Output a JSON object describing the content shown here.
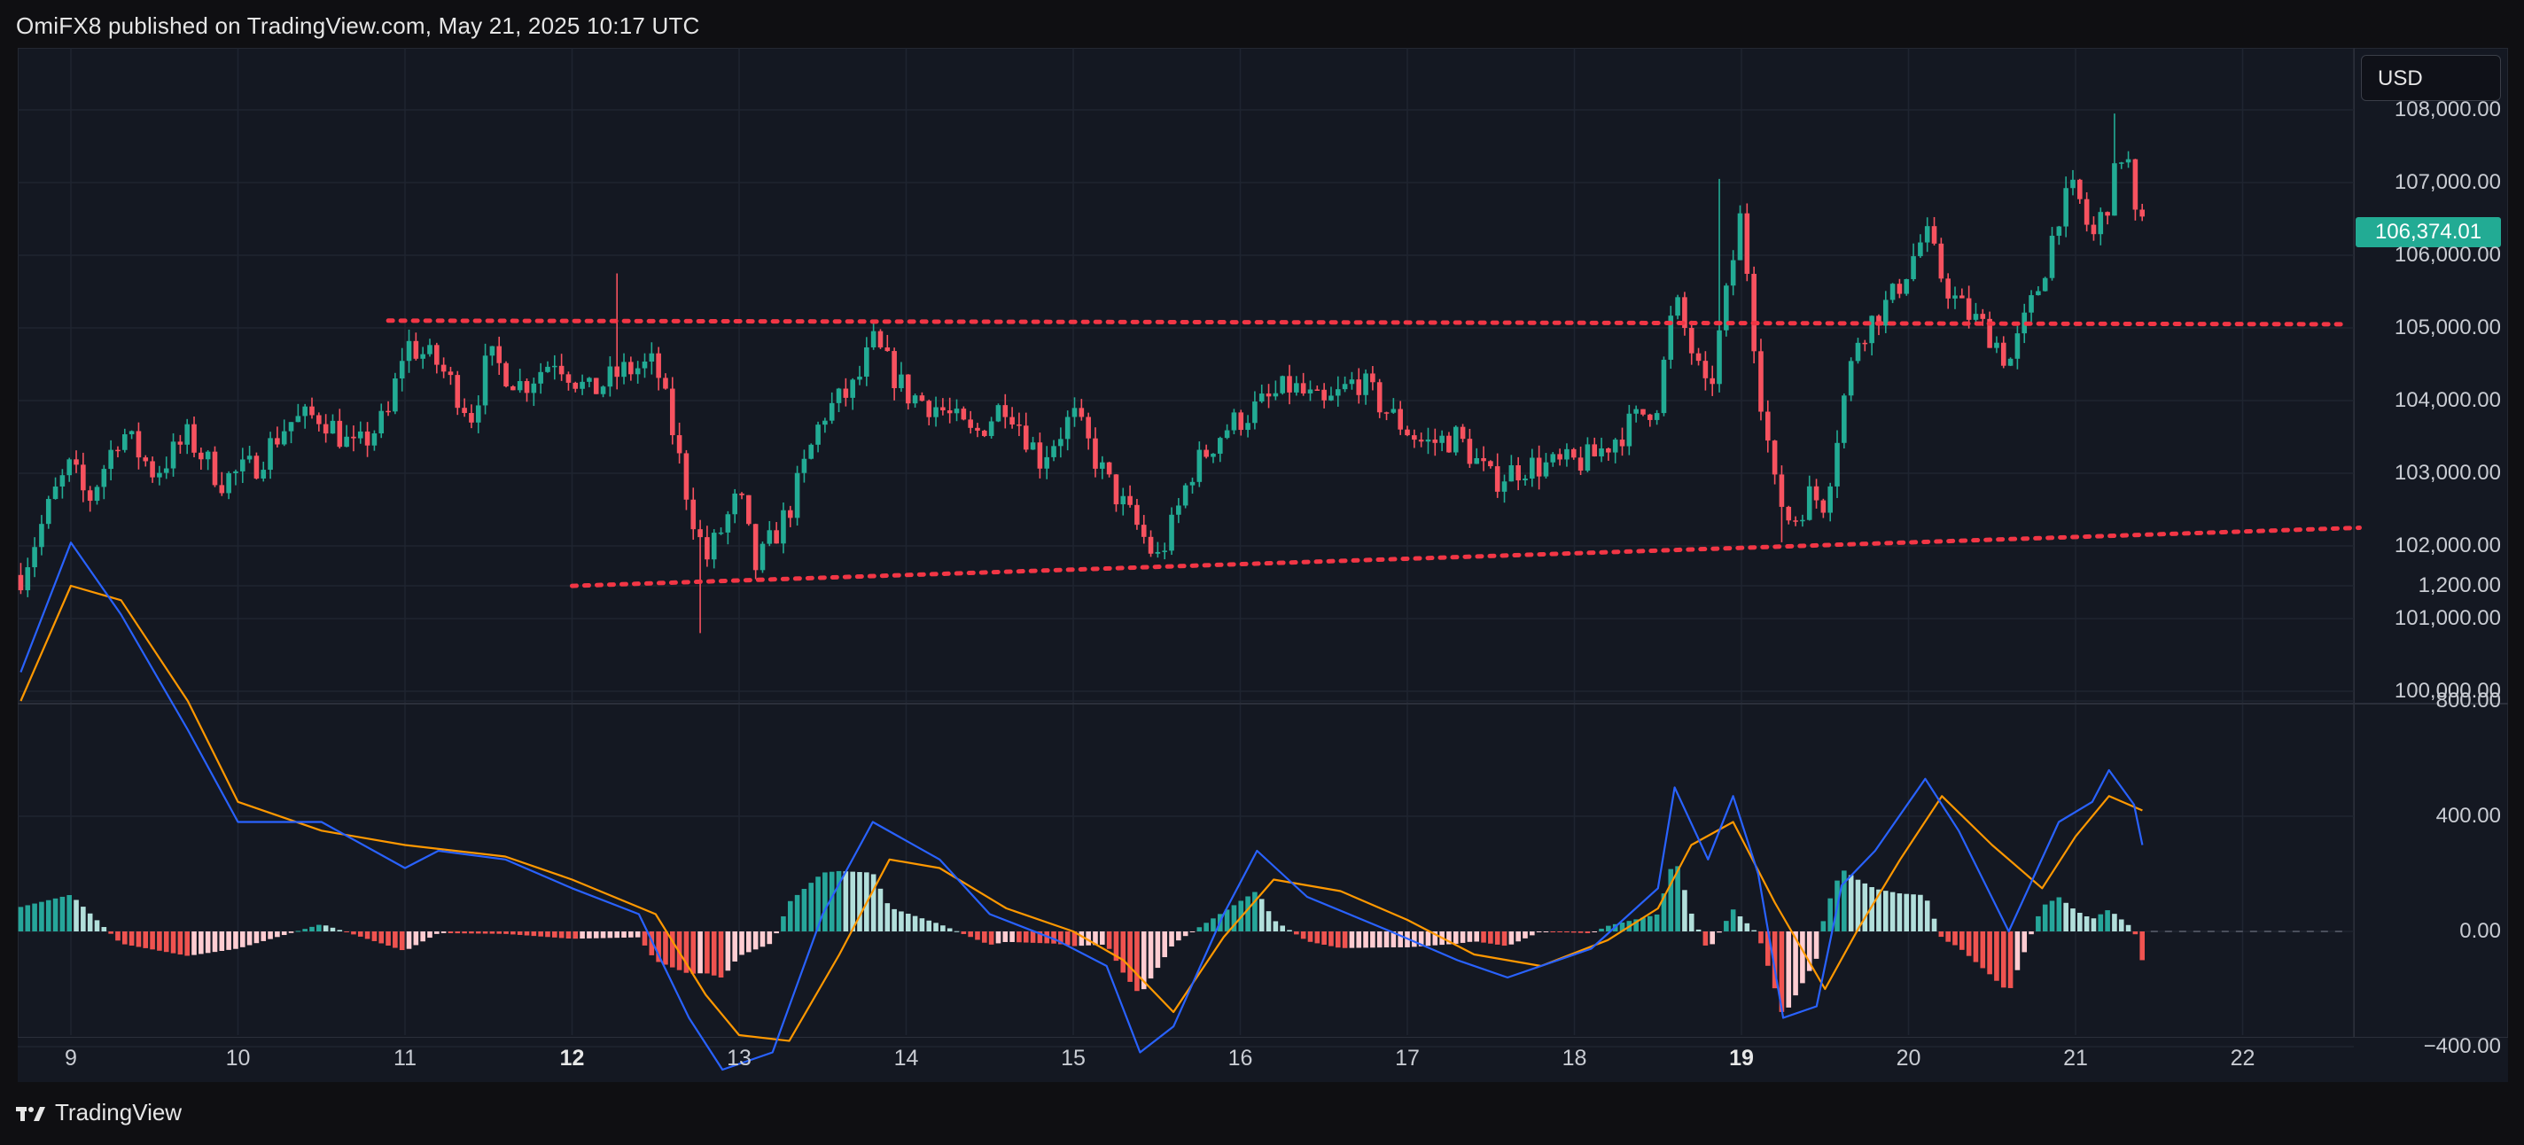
{
  "header": {
    "text": "OmiFX8 published on TradingView.com, May 21, 2025 10:17 UTC"
  },
  "currency_button": {
    "label": "USD"
  },
  "last_price": {
    "label": "106,374.01",
    "value": 106374.01
  },
  "brand": {
    "name": "TradingView"
  },
  "colors": {
    "up": "#22ab94",
    "down": "#f7525f",
    "macd": "#2962ff",
    "signal": "#ff9800",
    "level": "#f23645",
    "hist_up_strong": "#26a69a",
    "hist_up_weak": "#b2dfdb",
    "hist_down_strong": "#ef5350",
    "hist_down_weak": "#ffcdd2"
  },
  "price_axis": {
    "ticks": [
      "108,000.00",
      "107,000.00",
      "106,000.00",
      "105,000.00",
      "104,000.00",
      "103,000.00",
      "102,000.00",
      "101,000.00",
      "100,000.00"
    ],
    "values": [
      108000,
      107000,
      106000,
      105000,
      104000,
      103000,
      102000,
      101000,
      100000
    ]
  },
  "macd_axis": {
    "ticks": [
      "1,200.00",
      "800.00",
      "400.00",
      "0.00",
      "−400.00"
    ],
    "values": [
      1200,
      800,
      400,
      0,
      -400
    ]
  },
  "x_axis": {
    "ticks": [
      {
        "label": "9",
        "bold": false
      },
      {
        "label": "10",
        "bold": false
      },
      {
        "label": "11",
        "bold": false
      },
      {
        "label": "12",
        "bold": true
      },
      {
        "label": "13",
        "bold": false
      },
      {
        "label": "14",
        "bold": false
      },
      {
        "label": "15",
        "bold": false
      },
      {
        "label": "16",
        "bold": false
      },
      {
        "label": "17",
        "bold": false
      },
      {
        "label": "18",
        "bold": false
      },
      {
        "label": "19",
        "bold": true
      },
      {
        "label": "20",
        "bold": false
      },
      {
        "label": "21",
        "bold": false
      },
      {
        "label": "22",
        "bold": false
      }
    ]
  },
  "chart_data": {
    "type": "candlestick",
    "symbol_currency": "USD",
    "x_unit": "day of May 2025",
    "ylim": [
      99900,
      108200
    ],
    "close_path": [
      [
        8.7,
        101600
      ],
      [
        8.9,
        102700
      ],
      [
        9.0,
        103100
      ],
      [
        9.1,
        102600
      ],
      [
        9.3,
        103600
      ],
      [
        9.5,
        103000
      ],
      [
        9.7,
        103500
      ],
      [
        9.9,
        102900
      ],
      [
        10.1,
        103100
      ],
      [
        10.3,
        103700
      ],
      [
        10.5,
        103800
      ],
      [
        10.7,
        103300
      ],
      [
        10.9,
        103800
      ],
      [
        11.0,
        104800
      ],
      [
        11.2,
        104500
      ],
      [
        11.4,
        103800
      ],
      [
        11.5,
        104600
      ],
      [
        11.7,
        104200
      ],
      [
        11.9,
        104600
      ],
      [
        12.1,
        104100
      ],
      [
        12.3,
        104400
      ],
      [
        12.5,
        104500
      ],
      [
        12.6,
        103600
      ],
      [
        12.7,
        102600
      ],
      [
        12.8,
        101800
      ],
      [
        13.0,
        102700
      ],
      [
        13.1,
        101700
      ],
      [
        13.3,
        102500
      ],
      [
        13.5,
        103800
      ],
      [
        13.7,
        104200
      ],
      [
        13.8,
        104800
      ],
      [
        14.0,
        104100
      ],
      [
        14.2,
        103900
      ],
      [
        14.4,
        103500
      ],
      [
        14.6,
        104000
      ],
      [
        14.8,
        103200
      ],
      [
        15.0,
        103800
      ],
      [
        15.2,
        102900
      ],
      [
        15.4,
        102200
      ],
      [
        15.5,
        101800
      ],
      [
        15.6,
        102300
      ],
      [
        15.7,
        103000
      ],
      [
        15.9,
        103600
      ],
      [
        16.1,
        103900
      ],
      [
        16.3,
        104200
      ],
      [
        16.5,
        103900
      ],
      [
        16.7,
        104300
      ],
      [
        16.9,
        103800
      ],
      [
        17.1,
        103400
      ],
      [
        17.3,
        103500
      ],
      [
        17.5,
        102900
      ],
      [
        17.7,
        103100
      ],
      [
        17.9,
        103100
      ],
      [
        18.1,
        103200
      ],
      [
        18.3,
        103600
      ],
      [
        18.5,
        104000
      ],
      [
        18.6,
        105400
      ],
      [
        18.8,
        104000
      ],
      [
        19.0,
        106600
      ],
      [
        19.1,
        104300
      ],
      [
        19.2,
        102800
      ],
      [
        19.3,
        102300
      ],
      [
        19.4,
        102700
      ],
      [
        19.5,
        102600
      ],
      [
        19.6,
        103900
      ],
      [
        19.7,
        104900
      ],
      [
        19.9,
        105400
      ],
      [
        20.1,
        106300
      ],
      [
        20.2,
        105700
      ],
      [
        20.3,
        105300
      ],
      [
        20.5,
        104900
      ],
      [
        20.6,
        104500
      ],
      [
        20.8,
        105700
      ],
      [
        20.9,
        106600
      ],
      [
        21.0,
        106900
      ],
      [
        21.1,
        106200
      ],
      [
        21.2,
        106800
      ],
      [
        21.3,
        107600
      ],
      [
        21.35,
        106500
      ],
      [
        21.4,
        106374
      ]
    ],
    "high_marks": [
      {
        "x": 12.3,
        "high": 105750
      },
      {
        "x": 18.9,
        "high": 107050
      },
      {
        "x": 21.25,
        "high": 107950
      }
    ],
    "low_marks": [
      {
        "x": 12.8,
        "low": 100800
      },
      {
        "x": 19.25,
        "low": 102050
      }
    ],
    "levels": [
      {
        "name": "resistance",
        "from": [
          10.9,
          105100
        ],
        "to": [
          22.6,
          105050
        ]
      },
      {
        "name": "support",
        "from": [
          12.0,
          101450
        ],
        "to": [
          22.7,
          102250
        ]
      }
    ],
    "indicator": {
      "type": "MACD",
      "ylim": [
        -550,
        1550
      ],
      "macd": [
        [
          8.7,
          900
        ],
        [
          9.0,
          1350
        ],
        [
          9.3,
          1100
        ],
        [
          9.7,
          700
        ],
        [
          10.0,
          380
        ],
        [
          10.5,
          380
        ],
        [
          11.0,
          220
        ],
        [
          11.2,
          280
        ],
        [
          11.6,
          250
        ],
        [
          12.0,
          150
        ],
        [
          12.4,
          60
        ],
        [
          12.7,
          -300
        ],
        [
          12.9,
          -480
        ],
        [
          13.2,
          -420
        ],
        [
          13.5,
          60
        ],
        [
          13.8,
          380
        ],
        [
          14.2,
          250
        ],
        [
          14.5,
          60
        ],
        [
          14.9,
          -30
        ],
        [
          15.2,
          -120
        ],
        [
          15.4,
          -420
        ],
        [
          15.6,
          -330
        ],
        [
          15.9,
          60
        ],
        [
          16.1,
          280
        ],
        [
          16.4,
          120
        ],
        [
          16.9,
          0
        ],
        [
          17.3,
          -100
        ],
        [
          17.6,
          -160
        ],
        [
          18.1,
          -60
        ],
        [
          18.5,
          150
        ],
        [
          18.6,
          500
        ],
        [
          18.8,
          250
        ],
        [
          18.95,
          470
        ],
        [
          19.1,
          200
        ],
        [
          19.25,
          -300
        ],
        [
          19.45,
          -260
        ],
        [
          19.6,
          160
        ],
        [
          19.8,
          280
        ],
        [
          20.1,
          530
        ],
        [
          20.3,
          350
        ],
        [
          20.6,
          0
        ],
        [
          20.9,
          380
        ],
        [
          21.1,
          450
        ],
        [
          21.2,
          560
        ],
        [
          21.35,
          440
        ],
        [
          21.4,
          300
        ]
      ],
      "signal": [
        [
          8.7,
          800
        ],
        [
          9.0,
          1200
        ],
        [
          9.3,
          1150
        ],
        [
          9.7,
          800
        ],
        [
          10.0,
          450
        ],
        [
          10.5,
          350
        ],
        [
          11.0,
          300
        ],
        [
          11.6,
          260
        ],
        [
          12.0,
          180
        ],
        [
          12.5,
          60
        ],
        [
          12.8,
          -220
        ],
        [
          13.0,
          -360
        ],
        [
          13.3,
          -380
        ],
        [
          13.6,
          -80
        ],
        [
          13.9,
          250
        ],
        [
          14.2,
          220
        ],
        [
          14.6,
          80
        ],
        [
          15.0,
          0
        ],
        [
          15.3,
          -100
        ],
        [
          15.6,
          -280
        ],
        [
          15.9,
          -20
        ],
        [
          16.2,
          180
        ],
        [
          16.6,
          140
        ],
        [
          17.0,
          40
        ],
        [
          17.4,
          -80
        ],
        [
          17.8,
          -120
        ],
        [
          18.2,
          -30
        ],
        [
          18.5,
          80
        ],
        [
          18.7,
          300
        ],
        [
          18.95,
          380
        ],
        [
          19.2,
          100
        ],
        [
          19.5,
          -200
        ],
        [
          19.7,
          10
        ],
        [
          19.95,
          250
        ],
        [
          20.2,
          470
        ],
        [
          20.5,
          300
        ],
        [
          20.8,
          150
        ],
        [
          21.0,
          330
        ],
        [
          21.2,
          470
        ],
        [
          21.4,
          420
        ]
      ],
      "hist_note": "bars between macd and signal"
    }
  }
}
